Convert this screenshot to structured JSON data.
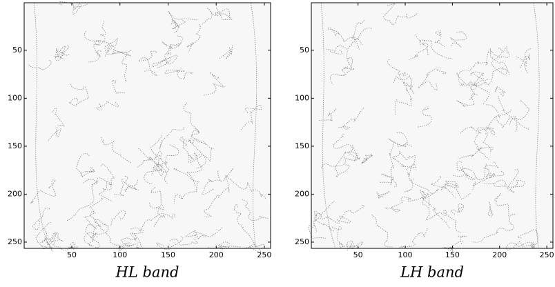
{
  "chart_data": [
    {
      "type": "image",
      "xlabel": "HL band",
      "xlim": [
        0.5,
        256.5
      ],
      "ylim": [
        0.5,
        256.5
      ],
      "xticks": [
        50,
        100,
        150,
        200,
        250
      ],
      "yticks": [
        50,
        100,
        150,
        200,
        250
      ]
    },
    {
      "type": "image",
      "xlabel": "LH band",
      "xlim": [
        0.5,
        256.5
      ],
      "ylim": [
        0.5,
        256.5
      ],
      "xticks": [
        50,
        100,
        150,
        200,
        250
      ],
      "yticks": [
        50,
        100,
        150,
        200,
        250
      ]
    }
  ]
}
